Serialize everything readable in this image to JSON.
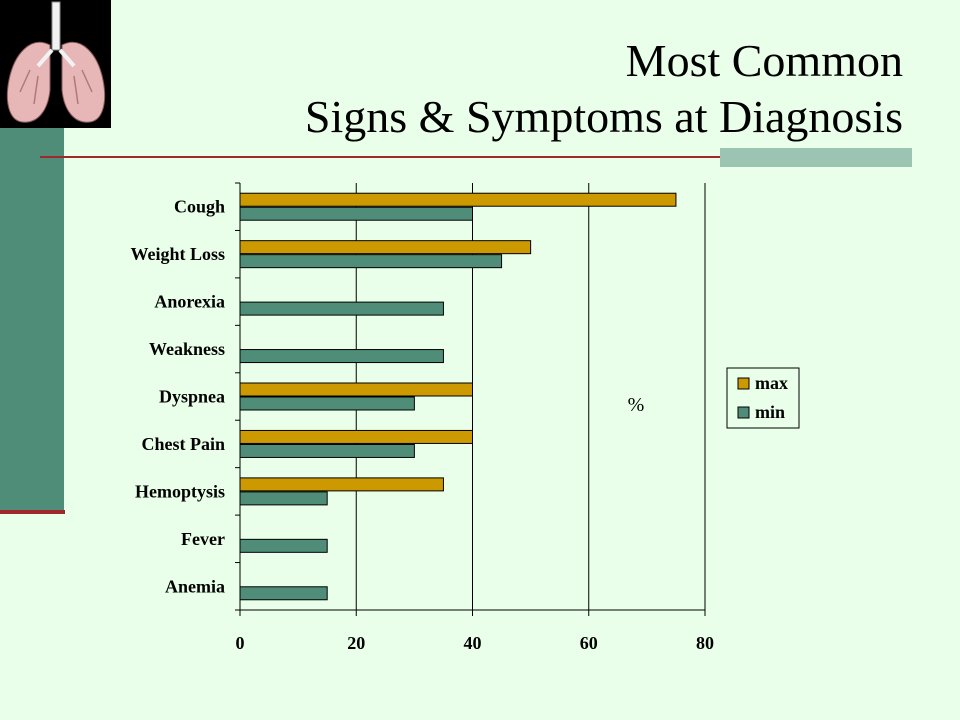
{
  "slide": {
    "title_line1": "Most Common",
    "title_line2": "Signs & Symptoms at Diagnosis",
    "background_color": "#eaffea",
    "accent_teal": "#4f8d79",
    "accent_red": "#a0282a",
    "image_icon": "lungs-illustration"
  },
  "chart_data": {
    "type": "bar",
    "orientation": "horizontal",
    "categories": [
      "Cough",
      "Weight Loss",
      "Anorexia",
      "Weakness",
      "Dyspnea",
      "Chest Pain",
      "Hemoptysis",
      "Fever",
      "Anemia"
    ],
    "series": [
      {
        "name": "max",
        "color": "#cc9900",
        "values": [
          75,
          50,
          null,
          null,
          40,
          40,
          35,
          null,
          null
        ]
      },
      {
        "name": "min",
        "color": "#4f8d79",
        "values": [
          40,
          45,
          35,
          35,
          30,
          30,
          15,
          15,
          15
        ]
      }
    ],
    "xlim": [
      0,
      80
    ],
    "xticks": [
      0,
      20,
      40,
      60,
      80
    ],
    "unit_label": "%",
    "grid": "vertical",
    "legend_position": "right"
  }
}
